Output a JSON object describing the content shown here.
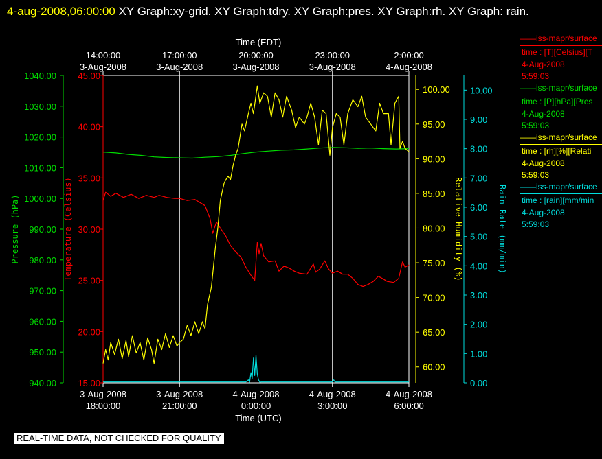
{
  "header": {
    "timestamp": "4-aug-2008,06:00:00",
    "titles": "XY Graph:xy-grid.  XY Graph:tdry.  XY Graph:pres.  XY Graph:rh.  XY Graph: rain."
  },
  "warning": "REAL-TIME DATA, NOT CHECKED FOR QUALITY",
  "legend": [
    {
      "name": "iss-mapr/surface",
      "units": "time : [T][Celsius][T",
      "date": "4-Aug-2008",
      "time": "5:59:03",
      "color": "#ff0000"
    },
    {
      "name": "iss-mapr/surface",
      "units": "time : [P][hPa][Pres",
      "date": "4-Aug-2008",
      "time": "5:59:03",
      "color": "#00dd00"
    },
    {
      "name": "iss-mapr/surface",
      "units": "time : [rh][%][Relati",
      "date": "4-Aug-2008",
      "time": "5:59:03",
      "color": "#ffff00"
    },
    {
      "name": "iss-mapr/surface",
      "units": "time : [rain][mm/min",
      "date": "4-Aug-2008",
      "time": "5:59:03",
      "color": "#00dddd"
    }
  ],
  "chart_data": {
    "type": "line",
    "x_unit": "hours UTC from 3-Aug-2008 18:00:00",
    "xlim": [
      0,
      12
    ],
    "top_axis": {
      "title": "Time (EDT)",
      "ticks": [
        {
          "x": 0,
          "l1": "14:00:00",
          "l2": "3-Aug-2008"
        },
        {
          "x": 3,
          "l1": "17:00:00",
          "l2": "3-Aug-2008"
        },
        {
          "x": 6,
          "l1": "20:00:00",
          "l2": "3-Aug-2008"
        },
        {
          "x": 9,
          "l1": "23:00:00",
          "l2": "3-Aug-2008"
        },
        {
          "x": 12,
          "l1": "2:00:00",
          "l2": "4-Aug-2008"
        }
      ]
    },
    "bottom_axis": {
      "title": "Time (UTC)",
      "ticks": [
        {
          "x": 0,
          "l1": "3-Aug-2008",
          "l2": "18:00:00"
        },
        {
          "x": 3,
          "l1": "3-Aug-2008",
          "l2": "21:00:00"
        },
        {
          "x": 6,
          "l1": "4-Aug-2008",
          "l2": "0:00:00"
        },
        {
          "x": 9,
          "l1": "4-Aug-2008",
          "l2": "3:00:00"
        },
        {
          "x": 12,
          "l1": "4-Aug-2008",
          "l2": "6:00:00"
        }
      ]
    },
    "axes": {
      "pressure": {
        "title": "Pressure (hPa)",
        "ylim": [
          940,
          1040
        ],
        "ticks": [
          "940.00",
          "950.00",
          "960.00",
          "970.00",
          "980.00",
          "990.00",
          "1000.00",
          "1010.00",
          "1020.00",
          "1030.00",
          "1040.00"
        ],
        "color": "#00dd00"
      },
      "temperature": {
        "title": "Temperature (Celsius)",
        "ylim": [
          15,
          45
        ],
        "ticks": [
          "15.00",
          "20.00",
          "25.00",
          "30.00",
          "35.00",
          "40.00",
          "45.00"
        ],
        "color": "#ff0000"
      },
      "rh": {
        "title": "Relative Humidity (%)",
        "ylim": [
          57.7,
          102
        ],
        "ticks": [
          "60.00",
          "65.00",
          "70.00",
          "75.00",
          "80.00",
          "85.00",
          "90.00",
          "95.00",
          "100.00"
        ],
        "color": "#ffff00"
      },
      "rain": {
        "title": "Rain Rate (mm/min)",
        "ylim": [
          0,
          10.5
        ],
        "ticks": [
          "0.00",
          "1.00",
          "2.00",
          "3.00",
          "4.00",
          "5.00",
          "6.00",
          "7.00",
          "8.00",
          "9.00",
          "10.00"
        ],
        "color": "#00dddd"
      }
    },
    "series": [
      {
        "name": "Temperature",
        "axis": "temperature",
        "color": "#ff0000",
        "points": [
          [
            0,
            32.8
          ],
          [
            0.1,
            33.6
          ],
          [
            0.3,
            33.2
          ],
          [
            0.5,
            33.5
          ],
          [
            0.8,
            33.1
          ],
          [
            1.1,
            33.4
          ],
          [
            1.4,
            33.0
          ],
          [
            1.7,
            33.3
          ],
          [
            2.0,
            33.1
          ],
          [
            2.2,
            33.3
          ],
          [
            2.5,
            33.1
          ],
          [
            2.8,
            33.0
          ],
          [
            3.0,
            33.0
          ],
          [
            3.3,
            32.8
          ],
          [
            3.6,
            32.9
          ],
          [
            3.8,
            32.6
          ],
          [
            4.0,
            32.3
          ],
          [
            4.2,
            31.0
          ],
          [
            4.3,
            29.6
          ],
          [
            4.45,
            30.7
          ],
          [
            4.6,
            30.1
          ],
          [
            4.8,
            29.4
          ],
          [
            5.0,
            28.4
          ],
          [
            5.2,
            27.8
          ],
          [
            5.4,
            27.3
          ],
          [
            5.6,
            26.3
          ],
          [
            5.8,
            25.5
          ],
          [
            5.95,
            25.0
          ],
          [
            6.05,
            28.7
          ],
          [
            6.12,
            27.6
          ],
          [
            6.2,
            28.6
          ],
          [
            6.3,
            27.4
          ],
          [
            6.5,
            26.8
          ],
          [
            6.75,
            26.9
          ],
          [
            6.9,
            25.9
          ],
          [
            7.1,
            26.4
          ],
          [
            7.3,
            26.2
          ],
          [
            7.5,
            25.9
          ],
          [
            7.7,
            25.7
          ],
          [
            8.0,
            25.6
          ],
          [
            8.25,
            26.6
          ],
          [
            8.35,
            25.8
          ],
          [
            8.5,
            26.1
          ],
          [
            8.7,
            26.9
          ],
          [
            8.85,
            26.1
          ],
          [
            9.0,
            25.7
          ],
          [
            9.2,
            25.9
          ],
          [
            9.4,
            25.6
          ],
          [
            9.6,
            25.6
          ],
          [
            9.8,
            25.2
          ],
          [
            10.0,
            24.6
          ],
          [
            10.2,
            24.4
          ],
          [
            10.4,
            24.6
          ],
          [
            10.6,
            24.9
          ],
          [
            10.8,
            25.4
          ],
          [
            10.95,
            25.2
          ],
          [
            11.15,
            24.9
          ],
          [
            11.4,
            24.8
          ],
          [
            11.6,
            25.2
          ],
          [
            11.75,
            26.8
          ],
          [
            11.85,
            26.3
          ],
          [
            12.0,
            26.5
          ]
        ]
      },
      {
        "name": "Pressure",
        "axis": "pressure",
        "color": "#00dd00",
        "points": [
          [
            0,
            1015.1
          ],
          [
            0.5,
            1014.8
          ],
          [
            1.0,
            1014.3
          ],
          [
            1.5,
            1014.0
          ],
          [
            2.0,
            1013.5
          ],
          [
            2.5,
            1013.3
          ],
          [
            3.0,
            1013.2
          ],
          [
            3.5,
            1013.1
          ],
          [
            4.0,
            1013.4
          ],
          [
            4.5,
            1013.6
          ],
          [
            5.0,
            1014.0
          ],
          [
            5.5,
            1014.6
          ],
          [
            6.0,
            1015.1
          ],
          [
            6.5,
            1015.4
          ],
          [
            7.0,
            1015.7
          ],
          [
            7.5,
            1015.8
          ],
          [
            8.0,
            1016.1
          ],
          [
            8.5,
            1016.4
          ],
          [
            9.0,
            1016.6
          ],
          [
            9.5,
            1016.5
          ],
          [
            10.0,
            1016.3
          ],
          [
            10.5,
            1016.4
          ],
          [
            11.0,
            1016.2
          ],
          [
            11.5,
            1016.1
          ],
          [
            12.0,
            1016.2
          ]
        ]
      },
      {
        "name": "Relative Humidity",
        "axis": "rh",
        "color": "#ffff00",
        "points": [
          [
            0,
            60.5
          ],
          [
            0.1,
            62.5
          ],
          [
            0.2,
            61.0
          ],
          [
            0.3,
            63.5
          ],
          [
            0.45,
            61.8
          ],
          [
            0.6,
            64.0
          ],
          [
            0.75,
            61.2
          ],
          [
            0.9,
            63.8
          ],
          [
            1.0,
            61.5
          ],
          [
            1.15,
            64.5
          ],
          [
            1.3,
            62.0
          ],
          [
            1.45,
            63.5
          ],
          [
            1.6,
            61.0
          ],
          [
            1.75,
            64.2
          ],
          [
            1.9,
            62.5
          ],
          [
            2.0,
            60.5
          ],
          [
            2.15,
            64.0
          ],
          [
            2.3,
            62.5
          ],
          [
            2.45,
            64.8
          ],
          [
            2.6,
            62.8
          ],
          [
            2.75,
            64.5
          ],
          [
            2.9,
            63.0
          ],
          [
            3.0,
            63.5
          ],
          [
            3.15,
            64.0
          ],
          [
            3.3,
            66.0
          ],
          [
            3.45,
            64.5
          ],
          [
            3.6,
            66.5
          ],
          [
            3.75,
            64.8
          ],
          [
            3.9,
            66.5
          ],
          [
            4.0,
            65.5
          ],
          [
            4.1,
            69.0
          ],
          [
            4.25,
            71.5
          ],
          [
            4.4,
            77.0
          ],
          [
            4.5,
            80.0
          ],
          [
            4.6,
            84.0
          ],
          [
            4.75,
            86.5
          ],
          [
            4.9,
            87.5
          ],
          [
            5.0,
            87.0
          ],
          [
            5.1,
            89.0
          ],
          [
            5.2,
            90.5
          ],
          [
            5.3,
            91.5
          ],
          [
            5.45,
            95.0
          ],
          [
            5.55,
            94.0
          ],
          [
            5.7,
            96.5
          ],
          [
            5.8,
            98.0
          ],
          [
            5.9,
            96.5
          ],
          [
            6.05,
            100.5
          ],
          [
            6.15,
            98.0
          ],
          [
            6.3,
            99.5
          ],
          [
            6.45,
            99.0
          ],
          [
            6.6,
            96.0
          ],
          [
            6.75,
            99.5
          ],
          [
            6.9,
            98.5
          ],
          [
            7.05,
            96.0
          ],
          [
            7.2,
            99.0
          ],
          [
            7.4,
            97.0
          ],
          [
            7.55,
            94.5
          ],
          [
            7.7,
            96.0
          ],
          [
            7.9,
            95.0
          ],
          [
            8.0,
            96.0
          ],
          [
            8.15,
            98.0
          ],
          [
            8.3,
            96.0
          ],
          [
            8.45,
            92.0
          ],
          [
            8.6,
            97.0
          ],
          [
            8.75,
            96.5
          ],
          [
            8.9,
            90.5
          ],
          [
            9.0,
            94.5
          ],
          [
            9.15,
            96.5
          ],
          [
            9.3,
            96.0
          ],
          [
            9.45,
            92.0
          ],
          [
            9.6,
            96.5
          ],
          [
            9.8,
            98.5
          ],
          [
            10.0,
            97.5
          ],
          [
            10.15,
            99.0
          ],
          [
            10.3,
            96.0
          ],
          [
            10.5,
            95.0
          ],
          [
            10.7,
            94.0
          ],
          [
            10.85,
            98.0
          ],
          [
            11.0,
            96.5
          ],
          [
            11.2,
            96.5
          ],
          [
            11.3,
            92.0
          ],
          [
            11.45,
            98.0
          ],
          [
            11.6,
            99.0
          ],
          [
            11.65,
            91.5
          ],
          [
            11.75,
            92.5
          ],
          [
            11.85,
            91.5
          ],
          [
            12.0,
            91.0
          ]
        ]
      },
      {
        "name": "Rain Rate",
        "axis": "rain",
        "color": "#00dddd",
        "points": [
          [
            0,
            0.03
          ],
          [
            5.6,
            0.03
          ],
          [
            5.7,
            0.1
          ],
          [
            5.75,
            0.02
          ],
          [
            5.8,
            0.35
          ],
          [
            5.85,
            0.15
          ],
          [
            5.9,
            0.85
          ],
          [
            5.95,
            0.25
          ],
          [
            6.0,
            0.95
          ],
          [
            6.05,
            0.3
          ],
          [
            6.1,
            0.1
          ],
          [
            6.15,
            0.02
          ],
          [
            6.2,
            0.03
          ],
          [
            9.0,
            0.03
          ],
          [
            9.05,
            0.1
          ],
          [
            9.1,
            0.03
          ],
          [
            12.0,
            0.03
          ]
        ]
      }
    ]
  }
}
